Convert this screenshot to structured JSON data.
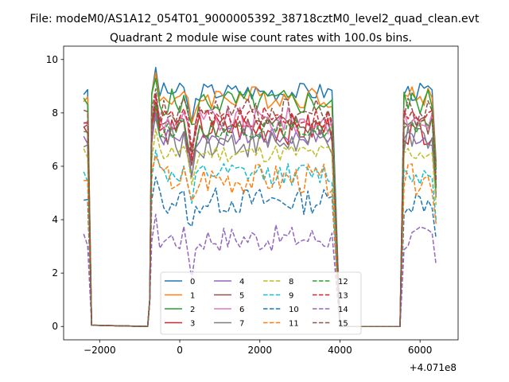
{
  "suptitle": "File: modeM0/AS1A12_054T01_9000005392_38718cztM0_level2_quad_clean.evt",
  "chart_data": {
    "type": "line",
    "title": "Quadrant 2 module wise count rates with 100.0s bins.",
    "xlabel": "",
    "ylabel": "",
    "x_offset_label": "+4.071e8",
    "xlim": [
      -2900,
      6950
    ],
    "ylim": [
      -0.5,
      10.5
    ],
    "xticks": [
      -2000,
      0,
      2000,
      4000,
      6000
    ],
    "xtick_labels": [
      "−2000",
      "0",
      "2000",
      "4000",
      "6000"
    ],
    "yticks": [
      0,
      2,
      4,
      6,
      8,
      10
    ],
    "ytick_labels": [
      "0",
      "2",
      "4",
      "6",
      "8",
      "10"
    ],
    "legend_position": "lower-center",
    "segments": [
      {
        "x_start": -2400,
        "x_end": -2300,
        "x_gap_end": -2200
      },
      {
        "x_start": -700,
        "x_end": 3800,
        "x_gap_end": 4000
      },
      {
        "x_start": 5600,
        "x_end": 6400
      }
    ],
    "series": [
      {
        "name": "0",
        "color": "#1f77b4",
        "dash": "solid",
        "level": 8.8
      },
      {
        "name": "1",
        "color": "#ff7f0e",
        "dash": "solid",
        "level": 8.6
      },
      {
        "name": "2",
        "color": "#2ca02c",
        "dash": "solid",
        "level": 8.4
      },
      {
        "name": "3",
        "color": "#d62728",
        "dash": "solid",
        "level": 7.4
      },
      {
        "name": "4",
        "color": "#9467bd",
        "dash": "solid",
        "level": 7.1
      },
      {
        "name": "5",
        "color": "#8c564b",
        "dash": "solid",
        "level": 7.5
      },
      {
        "name": "6",
        "color": "#e377c2",
        "dash": "solid",
        "level": 7.7
      },
      {
        "name": "7",
        "color": "#7f7f7f",
        "dash": "solid",
        "level": 6.9
      },
      {
        "name": "8",
        "color": "#bcbd22",
        "dash": "dashed",
        "level": 6.5
      },
      {
        "name": "9",
        "color": "#17becf",
        "dash": "dashed",
        "level": 5.7
      },
      {
        "name": "10",
        "color": "#1f77b4",
        "dash": "dashed",
        "level": 4.7
      },
      {
        "name": "11",
        "color": "#ff7f0e",
        "dash": "dashed",
        "level": 5.5
      },
      {
        "name": "12",
        "color": "#2ca02c",
        "dash": "dashed",
        "level": 7.4
      },
      {
        "name": "13",
        "color": "#d62728",
        "dash": "dashed",
        "level": 7.8
      },
      {
        "name": "14",
        "color": "#9467bd",
        "dash": "dashed",
        "level": 3.3
      },
      {
        "name": "15",
        "color": "#8c564b",
        "dash": "dashed",
        "level": 8.0
      }
    ]
  }
}
